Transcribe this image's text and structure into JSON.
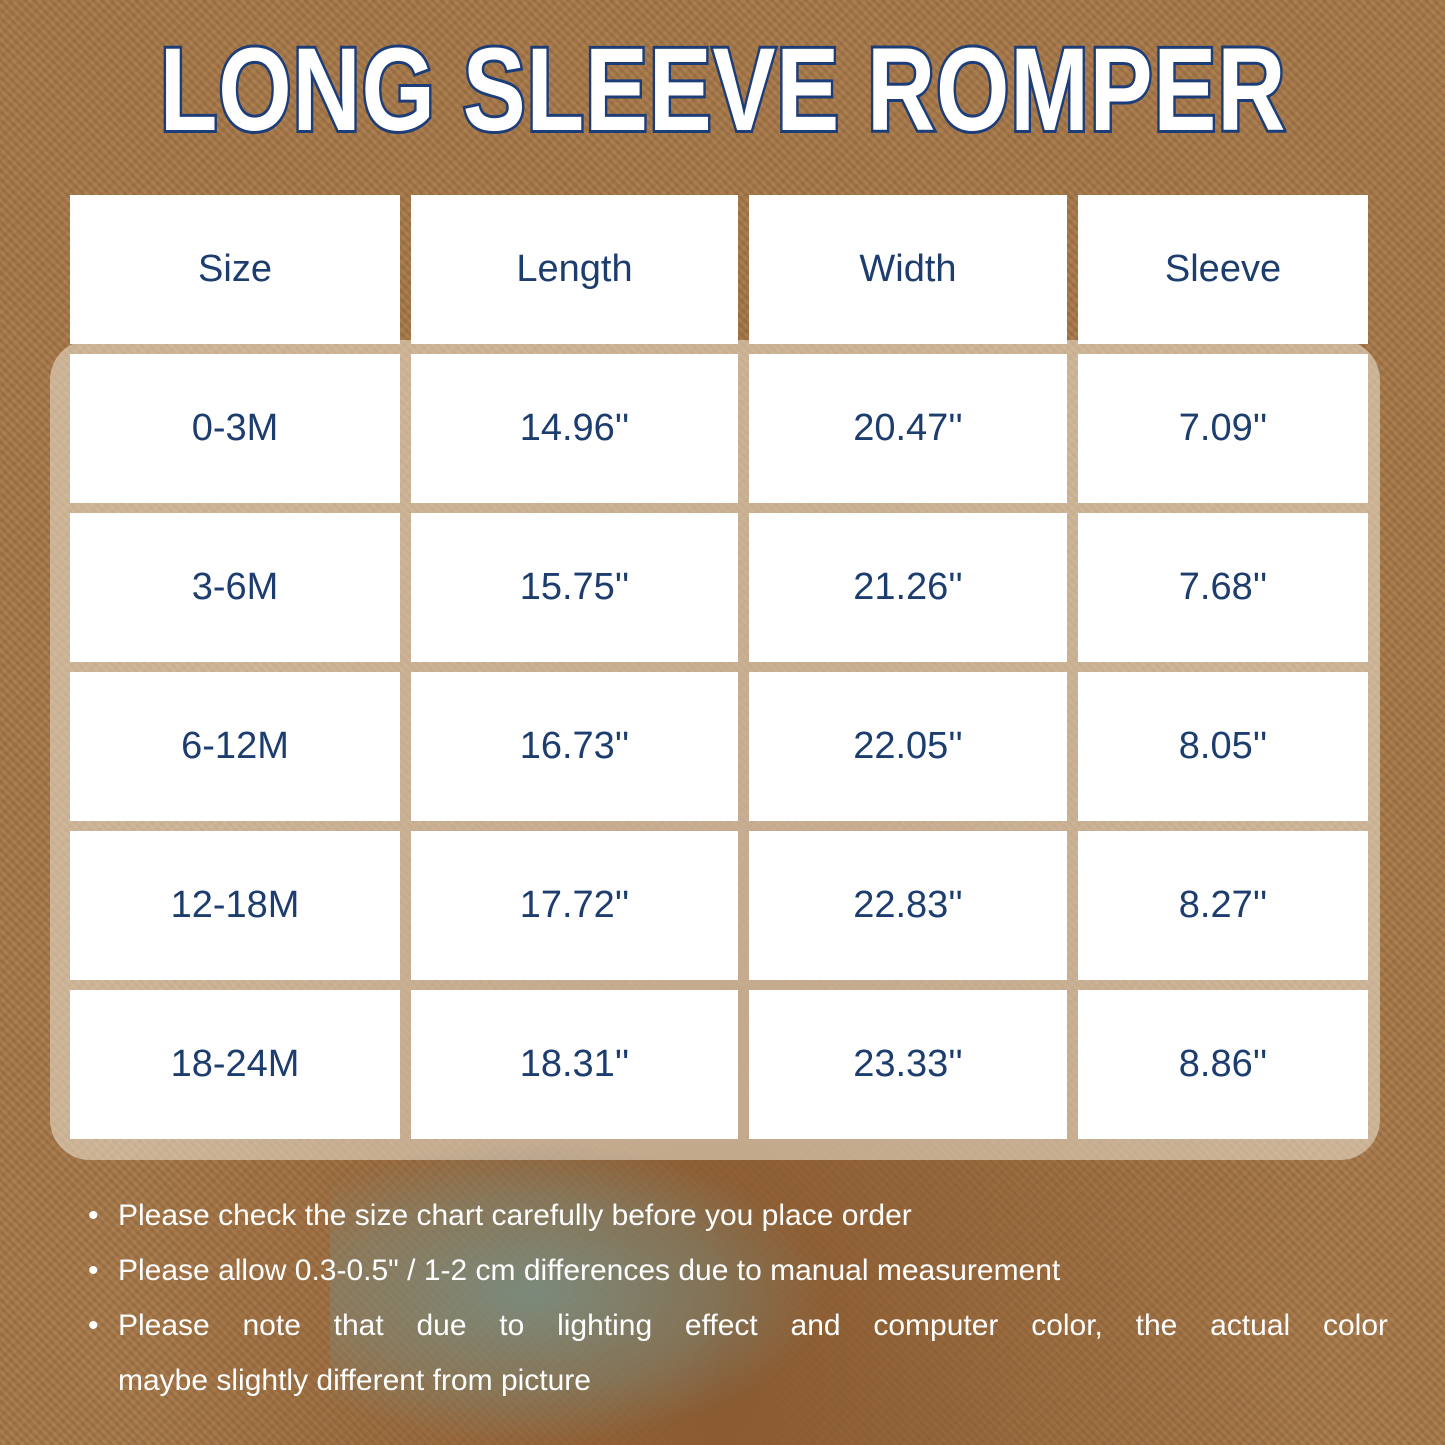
{
  "title": "LONG SLEEVE ROMPER",
  "table": {
    "headers": [
      "Size",
      "Length",
      "Width",
      "Sleeve"
    ],
    "rows": [
      [
        "0-3M",
        "14.96''",
        "20.47''",
        "7.09''"
      ],
      [
        "3-6M",
        "15.75''",
        "21.26''",
        "7.68''"
      ],
      [
        "6-12M",
        "16.73''",
        "22.05''",
        "8.05''"
      ],
      [
        "12-18M",
        "17.72''",
        "22.83''",
        "8.27''"
      ],
      [
        "18-24M",
        "18.31''",
        "23.33''",
        "8.86''"
      ]
    ]
  },
  "notes": [
    "Please check the size chart carefully before you place order",
    "Please allow 0.3-0.5\" / 1-2 cm differences due to manual measurement",
    "Please note that due to lighting effect and computer color, the actual color",
    "maybe slightly different from picture"
  ],
  "colors": {
    "title_outline": "#1c3d78",
    "text": "#1c3d6e",
    "cell_bg": "#ffffff"
  }
}
